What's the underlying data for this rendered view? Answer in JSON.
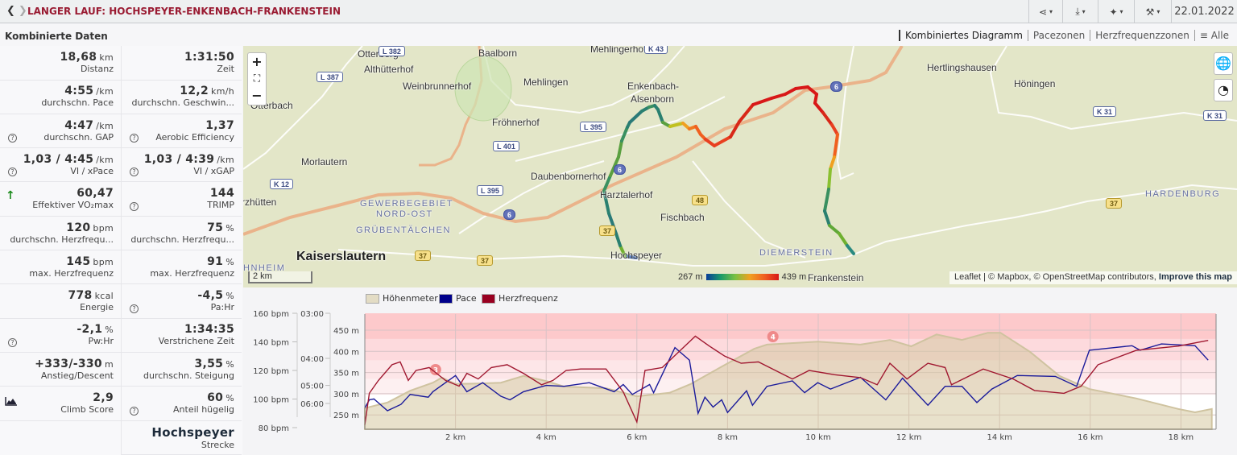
{
  "header": {
    "title": "LANGER LAUF: HOCHSPEYER-ENKENBACH-FRANKENSTEIN",
    "back_icon": "chevron-left",
    "forward_icon": "chevron-right",
    "toolbar": [
      {
        "name": "share",
        "icon": "share-icon",
        "glyph": "⋖"
      },
      {
        "name": "download",
        "icon": "download-icon",
        "glyph": "⤓"
      },
      {
        "name": "magic",
        "icon": "magic-wand-icon",
        "glyph": "✦"
      },
      {
        "name": "tools",
        "icon": "wrench-icon",
        "glyph": "🔧"
      }
    ],
    "date": "22.01.2022"
  },
  "section_title": "Kombinierte Daten",
  "tabs": [
    "Kombiniertes Diagramm",
    "Pacezonen",
    "Herzfrequenzzonen",
    "≡ Alle"
  ],
  "stats": [
    [
      {
        "v": "18,68",
        "u": "km",
        "l": "Distanz"
      },
      {
        "v": "1:31:50",
        "u": "",
        "l": "Zeit"
      }
    ],
    [
      {
        "v": "4:55",
        "u": "/km",
        "l": "durchschn. Pace"
      },
      {
        "v": "12,2",
        "u": "km/h",
        "l": "durchschn. Geschwin..."
      }
    ],
    [
      {
        "v": "4:47",
        "u": "/km",
        "l": "durchschn. GAP",
        "icon": "help"
      },
      {
        "v": "1,37",
        "u": "",
        "l": "Aerobic Efficiency",
        "icon": "help"
      }
    ],
    [
      {
        "v": "1,03 / 4:45",
        "u": "/km",
        "l": "VI / xPace",
        "icon": "help"
      },
      {
        "v": "1,03 / 4:39",
        "u": "/km",
        "l": "VI / xGAP",
        "icon": "help"
      }
    ],
    [
      {
        "v": "60,47",
        "u": "",
        "l": "Effektiver VO₂max",
        "icon": "arrow-up"
      },
      {
        "v": "144",
        "u": "",
        "l": "TRIMP",
        "icon": "help"
      }
    ],
    [
      {
        "v": "120",
        "u": "bpm",
        "l": "durchschn. Herzfrequ..."
      },
      {
        "v": "75",
        "u": "%",
        "l": "durchschn. Herzfrequ..."
      }
    ],
    [
      {
        "v": "145",
        "u": "bpm",
        "l": "max. Herzfrequenz"
      },
      {
        "v": "91",
        "u": "%",
        "l": "max. Herzfrequenz"
      }
    ],
    [
      {
        "v": "778",
        "u": "kcal",
        "l": "Energie"
      },
      {
        "v": "-4,5",
        "u": "%",
        "l": "Pa:Hr",
        "icon": "help"
      }
    ],
    [
      {
        "v": "-2,1",
        "u": "%",
        "l": "Pw:Hr",
        "icon": "help"
      },
      {
        "v": "1:34:35",
        "u": "",
        "l": "Verstrichene Zeit"
      }
    ],
    [
      {
        "v": "+333/-330",
        "u": "m",
        "l": "Anstieg/Descent"
      },
      {
        "v": "3,55",
        "u": "%",
        "l": "durchschn. Steigung"
      }
    ],
    [
      {
        "v": "2,9",
        "u": "",
        "l": "Climb Score",
        "icon": "climb"
      },
      {
        "v": "60",
        "u": "%",
        "l": "Anteil hügelig",
        "icon": "help"
      }
    ],
    [
      null,
      {
        "v": "Hochspeyer",
        "u": "",
        "l": "Strecke",
        "big": true
      }
    ]
  ],
  "map": {
    "places": [
      "Otterberg",
      "Baalborn",
      "Mehlingerhof",
      "Althütterhof",
      "Weinbrunnerhof",
      "Mehlingen",
      "Enkenbach-",
      "Alsenborn",
      "Otterbach",
      "Fröhnerhof",
      "Morlautern",
      "Daubenbornerhof",
      "Harztalerhof",
      "Fischbach",
      "Hochspeyer",
      "Kaiserslautern",
      "rzhütten",
      "Hertlingshausen",
      "Höningen",
      "Frankenstein"
    ],
    "districts": [
      "GEWERBEGEBIET",
      "NORD-OST",
      "GRÜBENTÄLCHEN",
      "HNHEIM",
      "DIEMERSTEIN",
      "HARDENBURG"
    ],
    "road_shields": [
      "L 382",
      "K 43",
      "L 387",
      "L 395",
      "L 401",
      "L 395",
      "K 12",
      "6",
      "6",
      "6",
      "48",
      "37",
      "37",
      "37",
      "37",
      "K 31",
      "K 31"
    ],
    "controls": {
      "zoom_in": "+",
      "fullscreen": "⛶",
      "zoom_out": "−"
    },
    "layer_icons": [
      "globe-icon",
      "speedometer-icon"
    ],
    "scale": "2 km",
    "legend_min": "267 m",
    "legend_max": "439 m",
    "attribution_prefix": "Leaflet | © Mapbox, © OpenStreetMap contributors,",
    "attribution_link": "Improve this map",
    "route_colors": {
      "low": "#0a3d99",
      "high": "#d81818"
    }
  },
  "chart_data": {
    "type": "line",
    "legend": [
      {
        "name": "Höhenmeter",
        "color": "#e3dcc4"
      },
      {
        "name": "Pace",
        "color": "#00008b"
      },
      {
        "name": "Herzfrequenz",
        "color": "#990020"
      }
    ],
    "x_ticks": [
      "2 km",
      "4 km",
      "6 km",
      "8 km",
      "10 km",
      "12 km",
      "14 km",
      "16 km",
      "18 km"
    ],
    "x_tick_values": [
      2,
      4,
      6,
      8,
      10,
      12,
      14,
      16,
      18
    ],
    "xlim": [
      0,
      18.68
    ],
    "hr_ticks": [
      "160 bpm",
      "140 bpm",
      "120 bpm",
      "100 bpm",
      "80 bpm"
    ],
    "hr_tick_values": [
      160,
      140,
      120,
      100,
      80
    ],
    "pace_ticks": [
      "03:00",
      "04:00",
      "05:00",
      "06:00"
    ],
    "pace_tick_speeds": [
      20,
      15,
      12,
      10
    ],
    "elev_ticks": [
      "450 m",
      "400 m",
      "350 m",
      "300 m",
      "250 m"
    ],
    "elev_tick_values": [
      450,
      400,
      350,
      300,
      250
    ],
    "hr_zone_bands": [
      [
        142,
        160,
        "#fdc9cb"
      ],
      [
        127,
        142,
        "#fddadd"
      ],
      [
        114,
        127,
        "#fde6e8"
      ],
      [
        103,
        114,
        "#fdf0f1"
      ]
    ],
    "markers": [
      {
        "label": "3",
        "km": 1.56
      },
      {
        "label": "4",
        "km": 9.0
      }
    ],
    "elevation": {
      "km": [
        0,
        0.5,
        1,
        1.5,
        1.7,
        2,
        2.5,
        3,
        3.5,
        4,
        4.39,
        5.32,
        6.0,
        6.72,
        7.19,
        7.94,
        8.59,
        8.87,
        9.99,
        10.93,
        11.58,
        12.05,
        12.61,
        13.17,
        13.74,
        14.02,
        14.67,
        15.32,
        15.98,
        17.01,
        17.94,
        18.31,
        18.68
      ],
      "m": [
        266,
        279,
        307,
        326,
        338,
        323,
        324,
        326,
        342,
        330,
        317,
        313,
        294,
        302,
        323,
        368,
        406,
        416,
        423,
        416,
        427,
        412,
        440,
        427,
        444,
        444,
        399,
        342,
        311,
        289,
        264,
        256,
        264
      ]
    },
    "heart_rate": {
      "km": [
        0,
        0.1,
        0.3,
        0.6,
        0.78,
        0.96,
        1.13,
        1.42,
        1.5,
        1.78,
        2.08,
        2.25,
        2.5,
        2.79,
        3.14,
        3.5,
        3.9,
        4.15,
        4.44,
        4.76,
        5.32,
        5.7,
        6.0,
        6.18,
        6.56,
        7.19,
        7.29,
        7.6,
        7.94,
        8.3,
        8.68,
        9.43,
        9.8,
        10.36,
        10.93,
        11.3,
        11.58,
        11.96,
        12.42,
        12.8,
        12.94,
        13.64,
        14.3,
        14.77,
        15.42,
        15.8,
        16.17,
        17.01,
        17.94,
        18.6
      ],
      "bpm": [
        82,
        104,
        113,
        124,
        126,
        113,
        120,
        122,
        120,
        113,
        109,
        118,
        114,
        122,
        124,
        118,
        110,
        113,
        120,
        121,
        121,
        105,
        84,
        120,
        122,
        141,
        144,
        137,
        130,
        125,
        126,
        114,
        120,
        117,
        115,
        110,
        125,
        114,
        125,
        122,
        110,
        121,
        114,
        106,
        104,
        109,
        124,
        134,
        137,
        141
      ]
    },
    "pace": {
      "km": [
        0,
        0.1,
        0.2,
        0.5,
        0.8,
        1.0,
        1.4,
        1.5,
        2.0,
        2.25,
        2.6,
        3.0,
        3.2,
        3.5,
        4.0,
        4.39,
        4.95,
        5.5,
        5.7,
        5.9,
        6.28,
        6.37,
        6.84,
        7.16,
        7.35,
        7.5,
        7.68,
        7.87,
        8.0,
        8.42,
        8.55,
        8.87,
        9.43,
        9.7,
        9.99,
        10.27,
        10.93,
        11.49,
        11.86,
        12.42,
        12.8,
        13.17,
        13.5,
        13.83,
        14.39,
        15.23,
        15.7,
        15.98,
        16.54,
        16.92,
        17.1,
        17.57,
        18.31,
        18.6
      ],
      "speed_kmh": [
        9.5,
        10.4,
        10.5,
        9.2,
        9.9,
        11,
        10.7,
        11.3,
        13.1,
        11.3,
        12.3,
        10.8,
        10.4,
        11.3,
        12,
        11.9,
        12.3,
        11.3,
        12.1,
        11,
        12.1,
        11.2,
        16.2,
        14.8,
        8.9,
        10.7,
        9.6,
        10.4,
        9.0,
        11.4,
        9.8,
        11.9,
        12.5,
        11.2,
        12.3,
        11.6,
        12.9,
        10.4,
        12.8,
        9.8,
        11.9,
        11.9,
        10.1,
        11.6,
        13.1,
        13,
        11.9,
        15.9,
        16.2,
        16.4,
        15.9,
        16.6,
        16.4,
        14.8
      ]
    }
  }
}
